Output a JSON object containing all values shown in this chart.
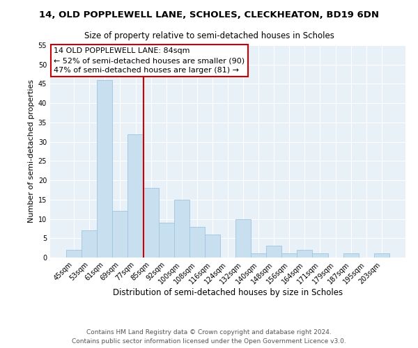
{
  "title": "14, OLD POPPLEWELL LANE, SCHOLES, CLECKHEATON, BD19 6DN",
  "subtitle": "Size of property relative to semi-detached houses in Scholes",
  "xlabel": "Distribution of semi-detached houses by size in Scholes",
  "ylabel": "Number of semi-detached properties",
  "bar_color": "#c8dff0",
  "bar_edge_color": "#a0c4e0",
  "categories": [
    "45sqm",
    "53sqm",
    "61sqm",
    "69sqm",
    "77sqm",
    "85sqm",
    "92sqm",
    "100sqm",
    "108sqm",
    "116sqm",
    "124sqm",
    "132sqm",
    "140sqm",
    "148sqm",
    "156sqm",
    "164sqm",
    "171sqm",
    "179sqm",
    "187sqm",
    "195sqm",
    "203sqm"
  ],
  "values": [
    2,
    7,
    46,
    12,
    32,
    18,
    9,
    15,
    8,
    6,
    0,
    10,
    1,
    3,
    1,
    2,
    1,
    0,
    1,
    0,
    1
  ],
  "ylim": [
    0,
    55
  ],
  "yticks": [
    0,
    5,
    10,
    15,
    20,
    25,
    30,
    35,
    40,
    45,
    50,
    55
  ],
  "vline_color": "#cc0000",
  "vline_index": 4.5,
  "annotation_title": "14 OLD POPPLEWELL LANE: 84sqm",
  "annotation_line1": "← 52% of semi-detached houses are smaller (90)",
  "annotation_line2": "47% of semi-detached houses are larger (81) →",
  "annotation_box_color": "#ffffff",
  "annotation_box_edge": "#cc0000",
  "footer_line1": "Contains HM Land Registry data © Crown copyright and database right 2024.",
  "footer_line2": "Contains public sector information licensed under the Open Government Licence v3.0.",
  "title_fontsize": 9.5,
  "subtitle_fontsize": 8.5,
  "xlabel_fontsize": 8.5,
  "ylabel_fontsize": 8,
  "tick_fontsize": 7,
  "annotation_fontsize": 8,
  "footer_fontsize": 6.5,
  "bg_color": "#e8f0f8"
}
